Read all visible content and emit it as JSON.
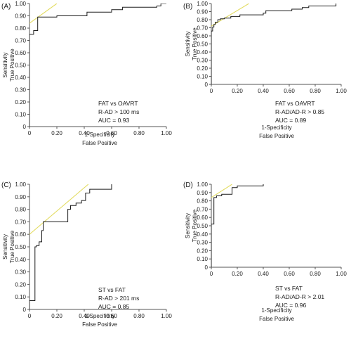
{
  "chart_data": [
    {
      "panel_label": "(A)",
      "type": "line",
      "xlabel": "1-Specificity",
      "xlabel2": "False Positive",
      "ylabel": "Sensitivity",
      "ylabel2": "True Positive",
      "xlim": [
        0,
        1
      ],
      "ylim": [
        0,
        1
      ],
      "xticks": [
        "0",
        "0.20",
        "0.40",
        "0.60",
        "0.80",
        "1.00"
      ],
      "yticks": [
        "0",
        "0.10",
        "0.20",
        "0.30",
        "0.40",
        "0.50",
        "0.60",
        "0.70",
        "0.80",
        "0.90",
        "1.00"
      ],
      "annotations": [
        "FAT vs OAVRT",
        "R-AD > 100 ms",
        "AUC = 0.93"
      ],
      "roc_curve": {
        "x": [
          0,
          0,
          0.03,
          0.03,
          0.06,
          0.06,
          0.2,
          0.2,
          0.42,
          0.42,
          0.6,
          0.6,
          0.68,
          0.68,
          0.93,
          0.93,
          0.96,
          0.96,
          1.0
        ],
        "y": [
          0,
          0.75,
          0.75,
          0.78,
          0.78,
          0.89,
          0.89,
          0.9,
          0.9,
          0.93,
          0.93,
          0.95,
          0.95,
          0.97,
          0.97,
          0.98,
          0.98,
          1.0,
          1.0
        ]
      },
      "tangent_line": {
        "x": [
          0,
          0.2
        ],
        "y": [
          0.84,
          1.0
        ]
      }
    },
    {
      "panel_label": "(B)",
      "type": "line",
      "xlabel": "1-Specificity",
      "xlabel2": "False Positive",
      "ylabel": "Sensitivity",
      "ylabel2": "True Positive",
      "xlim": [
        0,
        1
      ],
      "ylim": [
        0,
        1
      ],
      "xticks": [
        "0",
        "0.20",
        "0.40",
        "0.60",
        "0.80",
        "1.00"
      ],
      "yticks": [
        "0",
        "0.10",
        "0.20",
        "0.30",
        "0.40",
        "0.50",
        "0.60",
        "0.70",
        "0.80",
        "0.90",
        "1.00"
      ],
      "annotations": [
        "FAT vs OAVRT",
        "R-AD/AD-R > 0.85",
        "AUC = 0.89"
      ],
      "roc_curve": {
        "x": [
          0,
          0,
          0.01,
          0.01,
          0.02,
          0.02,
          0.03,
          0.03,
          0.05,
          0.05,
          0.07,
          0.07,
          0.1,
          0.1,
          0.15,
          0.15,
          0.22,
          0.22,
          0.4,
          0.4,
          0.42,
          0.42,
          0.62,
          0.62,
          0.7,
          0.7,
          0.75,
          0.75,
          0.96,
          0.96
        ],
        "y": [
          0,
          0.66,
          0.66,
          0.71,
          0.71,
          0.74,
          0.74,
          0.77,
          0.77,
          0.8,
          0.8,
          0.81,
          0.81,
          0.82,
          0.82,
          0.84,
          0.84,
          0.86,
          0.86,
          0.88,
          0.88,
          0.91,
          0.91,
          0.93,
          0.93,
          0.95,
          0.95,
          0.97,
          0.97,
          1.0
        ]
      },
      "tangent_line": {
        "x": [
          0,
          0.29
        ],
        "y": [
          0.72,
          1.0
        ]
      }
    },
    {
      "panel_label": "(C)",
      "type": "line",
      "xlabel": "1-Specificity",
      "xlabel2": "False Positive",
      "ylabel": "Sensitivity",
      "ylabel2": "True Positive",
      "xlim": [
        0,
        1
      ],
      "ylim": [
        0,
        1
      ],
      "xticks": [
        "0",
        "0.20",
        "0.40",
        "0.60",
        "0.80",
        "1.00"
      ],
      "yticks": [
        "0",
        "0.10",
        "0.20",
        "0.30",
        "0.40",
        "0.50",
        "0.60",
        "0.70",
        "0.80",
        "0.90",
        "1.00"
      ],
      "annotations": [
        "ST vs FAT",
        "R-AD > 201 ms",
        "AUC = 0.85"
      ],
      "roc_curve": {
        "x": [
          0,
          0,
          0.04,
          0.04,
          0.05,
          0.05,
          0.07,
          0.07,
          0.09,
          0.09,
          0.1,
          0.1,
          0.28,
          0.28,
          0.3,
          0.3,
          0.34,
          0.34,
          0.38,
          0.38,
          0.41,
          0.41,
          0.44,
          0.44,
          0.6,
          0.6
        ],
        "y": [
          0,
          0.07,
          0.07,
          0.5,
          0.5,
          0.51,
          0.51,
          0.54,
          0.54,
          0.63,
          0.63,
          0.7,
          0.7,
          0.8,
          0.8,
          0.83,
          0.83,
          0.85,
          0.85,
          0.87,
          0.87,
          0.93,
          0.93,
          0.96,
          0.96,
          1.0
        ]
      },
      "tangent_line": {
        "x": [
          0,
          0.43
        ],
        "y": [
          0.6,
          1.0
        ]
      }
    },
    {
      "panel_label": "(D)",
      "type": "line",
      "xlabel": "1-Specificity",
      "xlabel2": "False Positive",
      "ylabel": "Sensitivity",
      "ylabel2": "True Positive",
      "xlim": [
        0,
        1
      ],
      "ylim": [
        0,
        1
      ],
      "xticks": [
        "0",
        "0.20",
        "0.40",
        "0.60",
        "0.80",
        "1.00"
      ],
      "yticks": [
        "0",
        "0.10",
        "0.20",
        "0.30",
        "0.40",
        "0.50",
        "0.60",
        "0.70",
        "0.80",
        "0.90",
        "1.00"
      ],
      "annotations": [
        "ST vs FAT",
        "R-AD/AD-R > 2.01",
        "AUC = 0.96"
      ],
      "roc_curve": {
        "x": [
          0,
          0,
          0.02,
          0.02,
          0.04,
          0.04,
          0.08,
          0.08,
          0.16,
          0.16,
          0.2,
          0.2,
          0.4,
          0.4
        ],
        "y": [
          0,
          0.52,
          0.52,
          0.84,
          0.84,
          0.86,
          0.86,
          0.88,
          0.88,
          0.96,
          0.96,
          0.98,
          0.98,
          1.0
        ]
      },
      "tangent_line": {
        "x": [
          0,
          0.16
        ],
        "y": [
          0.84,
          1.0
        ]
      }
    }
  ],
  "colors": {
    "axis": "#555555",
    "curve": "#1a1a1a",
    "tangent": "#e3dc62",
    "text": "#1a1a1a"
  }
}
